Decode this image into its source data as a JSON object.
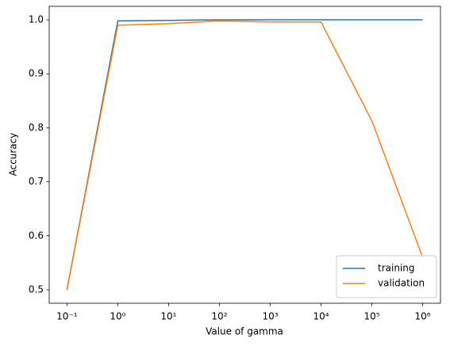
{
  "chart_data": {
    "type": "line",
    "x_label": "Value of gamma",
    "y_label": "Accuracy",
    "x": [
      0.1,
      1,
      10,
      100,
      1000,
      10000,
      100000,
      1000000
    ],
    "series": [
      {
        "name": "training",
        "color": "#1f77b4",
        "values": [
          0.5,
          0.998,
          0.999,
          1.0,
          1.0,
          1.0,
          1.0,
          1.0
        ]
      },
      {
        "name": "validation",
        "color": "#ff7f0e",
        "values": [
          0.5,
          0.99,
          0.993,
          0.998,
          0.996,
          0.996,
          0.813,
          0.56
        ]
      }
    ],
    "xscale": "log",
    "xlim": [
      0.0447,
      2240000
    ],
    "xticks": [
      {
        "value": 0.1,
        "label": "10⁻¹"
      },
      {
        "value": 1,
        "label": "10⁰"
      },
      {
        "value": 10,
        "label": "10¹"
      },
      {
        "value": 100,
        "label": "10²"
      },
      {
        "value": 1000,
        "label": "10³"
      },
      {
        "value": 10000,
        "label": "10⁴"
      },
      {
        "value": 100000,
        "label": "10⁵"
      },
      {
        "value": 1000000,
        "label": "10⁶"
      }
    ],
    "ylim": [
      0.475,
      1.025
    ],
    "yticks": [
      0.5,
      0.6,
      0.7,
      0.8,
      0.9,
      {
        "value": 1,
        "label": "1.0"
      }
    ],
    "grid": false,
    "legend": "lower right"
  }
}
